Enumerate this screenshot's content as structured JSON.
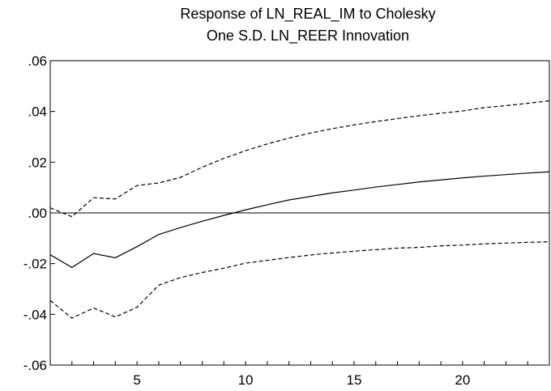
{
  "chart_data": {
    "type": "line",
    "title": "Response of LN_REAL_IM to Cholesky",
    "subtitle": "One S.D. LN_REER Innovation",
    "xlabel": "",
    "ylabel": "",
    "xlim": [
      1,
      24
    ],
    "ylim": [
      -0.06,
      0.06
    ],
    "x": [
      1,
      2,
      3,
      4,
      5,
      6,
      7,
      8,
      9,
      10,
      11,
      12,
      13,
      14,
      15,
      16,
      17,
      18,
      19,
      20,
      21,
      22,
      23,
      24
    ],
    "x_ticks": [
      5,
      10,
      15,
      20
    ],
    "x_tick_labels": [
      "5",
      "10",
      "15",
      "20"
    ],
    "y_ticks": [
      -0.06,
      -0.04,
      -0.02,
      0.0,
      0.02,
      0.04,
      0.06
    ],
    "y_tick_labels": [
      "-.06",
      "-.04",
      "-.02",
      ".00",
      ".02",
      ".04",
      ".06"
    ],
    "grid": false,
    "legend": "none",
    "zero_line": true,
    "series": [
      {
        "style": "solid",
        "color": "#000000",
        "values": [
          -0.0165,
          -0.0215,
          -0.016,
          -0.0177,
          -0.0133,
          -0.0085,
          -0.0058,
          -0.0033,
          -0.001,
          0.0012,
          0.0032,
          0.0051,
          0.0065,
          0.0079,
          0.009,
          0.0102,
          0.0112,
          0.0122,
          0.013,
          0.0138,
          0.0145,
          0.0151,
          0.0157,
          0.0162
        ]
      },
      {
        "style": "dashed",
        "color": "#000000",
        "values": [
          0.002,
          -0.0015,
          0.006,
          0.0055,
          0.0108,
          0.0118,
          0.014,
          0.018,
          0.0215,
          0.0245,
          0.0272,
          0.0295,
          0.0315,
          0.0332,
          0.0347,
          0.036,
          0.0372,
          0.0383,
          0.0393,
          0.0402,
          0.0415,
          0.0423,
          0.0432,
          0.0442
        ]
      },
      {
        "style": "dashed",
        "color": "#000000",
        "values": [
          -0.0345,
          -0.0415,
          -0.0375,
          -0.041,
          -0.0372,
          -0.0285,
          -0.0255,
          -0.0235,
          -0.0218,
          -0.0198,
          -0.0187,
          -0.0176,
          -0.0166,
          -0.0158,
          -0.0151,
          -0.0145,
          -0.0139,
          -0.0136,
          -0.013,
          -0.0127,
          -0.0122,
          -0.0119,
          -0.0116,
          -0.0114
        ]
      }
    ]
  }
}
